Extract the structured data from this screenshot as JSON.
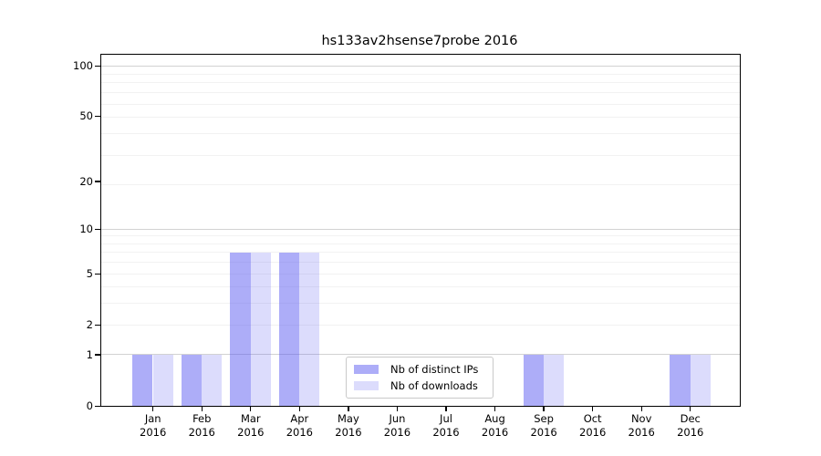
{
  "chart_data": {
    "type": "bar",
    "title": "hs133av2hsense7probe 2016",
    "categories": [
      "Jan",
      "Feb",
      "Mar",
      "Apr",
      "May",
      "Jun",
      "Jul",
      "Aug",
      "Sep",
      "Oct",
      "Nov",
      "Dec"
    ],
    "x_tick_second_line": "2016",
    "series": [
      {
        "name": "Nb of distinct IPs",
        "color": "rgba(80,80,240,0.47)",
        "values": [
          1,
          1,
          7,
          7,
          0,
          0,
          0,
          0,
          1,
          0,
          0,
          1
        ]
      },
      {
        "name": "Nb of downloads",
        "color": "rgba(80,80,240,0.20)",
        "values": [
          1,
          1,
          7,
          7,
          0,
          0,
          0,
          0,
          1,
          0,
          0,
          1
        ]
      }
    ],
    "yscale": "log1p",
    "ylim": [
      0,
      116
    ],
    "y_ticks": [
      0,
      1,
      2,
      5,
      10,
      20,
      50,
      100
    ],
    "grid": {
      "major_at": [
        1,
        10,
        100
      ],
      "minor_at": [
        2,
        3,
        4,
        5,
        6,
        7,
        8,
        9,
        19,
        29,
        39,
        49,
        59,
        69,
        79,
        89
      ],
      "major_color": "#d2d2d2",
      "minor_color": "#f2f2f2"
    },
    "legend_position": "lower center",
    "colors": {
      "axis": "#000000",
      "background": "#ffffff"
    }
  }
}
